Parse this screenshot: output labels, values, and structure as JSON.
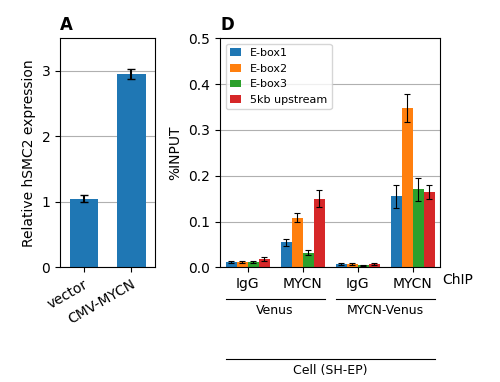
{
  "chart_data": [
    {
      "type": "bar",
      "title": "A",
      "categories": [
        "vector",
        "CMV-MYCN"
      ],
      "values": [
        1.05,
        2.95
      ],
      "errors": [
        0.05,
        0.08
      ],
      "ylabel": "Relative hSMC2 expression",
      "ylim": [
        0,
        3.5
      ],
      "yticks": [
        0,
        1,
        2,
        3
      ],
      "grid": true
    },
    {
      "type": "bar",
      "title": "D",
      "categories": [
        "IgG",
        "MYCN",
        "IgG",
        "MYCN"
      ],
      "series": [
        {
          "name": "E-box1",
          "values": [
            0.012,
            0.055,
            0.007,
            0.155
          ],
          "errors": [
            0.003,
            0.008,
            0.002,
            0.025
          ]
        },
        {
          "name": "E-box2",
          "values": [
            0.012,
            0.108,
            0.008,
            0.348
          ],
          "errors": [
            0.003,
            0.01,
            0.002,
            0.03
          ]
        },
        {
          "name": "E-box3",
          "values": [
            0.012,
            0.032,
            0.005,
            0.17
          ],
          "errors": [
            0.002,
            0.005,
            0.001,
            0.025
          ]
        },
        {
          "name": "5kb upstream",
          "values": [
            0.018,
            0.15,
            0.007,
            0.165
          ],
          "errors": [
            0.004,
            0.018,
            0.002,
            0.015
          ]
        }
      ],
      "xlabel": "ChIP",
      "ylabel": "%INPUT",
      "ylim": [
        0,
        0.5
      ],
      "yticks": [
        0.0,
        0.1,
        0.2,
        0.3,
        0.4,
        0.5
      ],
      "grid": true,
      "legend": "upper left",
      "annotations": [
        {
          "text": "Venus",
          "categories": [
            0,
            1
          ]
        },
        {
          "text": "MYCN-Venus",
          "categories": [
            2,
            3
          ]
        },
        {
          "text": "Cell (SH-EP)",
          "categories": [
            0,
            3
          ]
        }
      ]
    }
  ]
}
